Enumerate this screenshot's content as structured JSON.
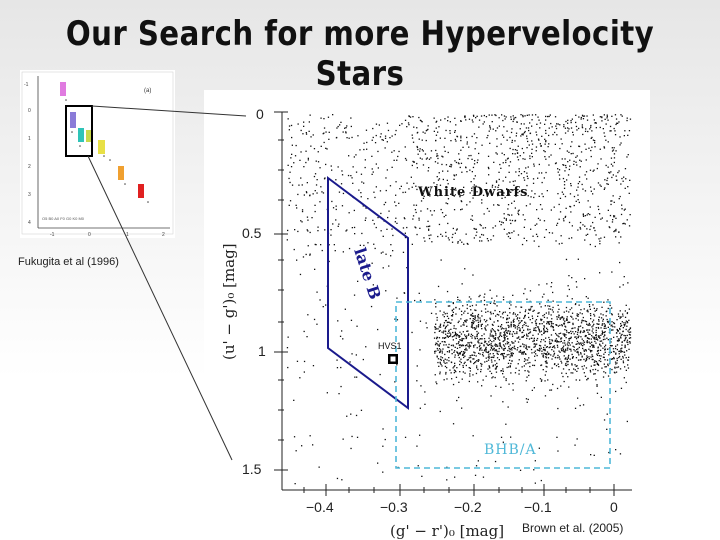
{
  "slide": {
    "title": "Our Search for more Hypervelocity Stars"
  },
  "inset_figure": {
    "caption": "Fukugita et al (1996)",
    "panel_label": "(a)",
    "x_ticks": [
      "-1",
      "0",
      "1",
      "2"
    ],
    "y_ticks": [
      "-1",
      "0",
      "1",
      "2",
      "3",
      "4"
    ]
  },
  "main_figure": {
    "caption": "Brown et al. (2005)",
    "x_axis_label": "(g' − r')₀ [mag]",
    "y_axis_label": "(u' − g')₀ [mag]",
    "x_ticks": [
      "−0.4",
      "−0.3",
      "−0.2",
      "−0.1",
      "0"
    ],
    "y_ticks": [
      "0",
      "0.5",
      "1",
      "1.5"
    ],
    "regions": {
      "white_dwarfs": "White Dwarfs",
      "late_b": "late B",
      "bhb_a": "BHB/A",
      "hvs1": "HVS1"
    },
    "colors": {
      "late_b_box": "#1a1a8c",
      "bhb_box": "#4fb8d8",
      "leader_lines": "#333333"
    }
  }
}
